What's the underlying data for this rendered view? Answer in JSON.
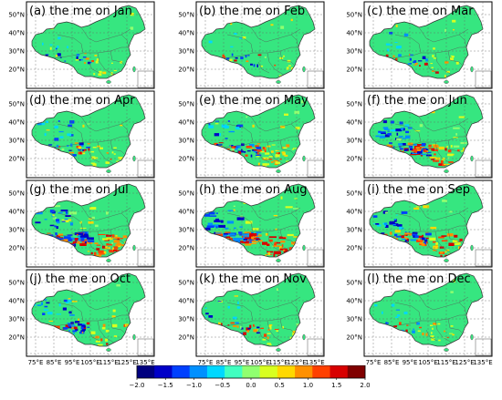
{
  "panels": [
    {
      "title": "(a) the me on Jan",
      "intensity": 0.15,
      "hot": 0.25
    },
    {
      "title": "(b) the me on Feb",
      "intensity": 0.15,
      "hot": 0.25
    },
    {
      "title": "(c) the me on Mar",
      "intensity": 0.2,
      "hot": 0.35
    },
    {
      "title": "(d) the me on Apr",
      "intensity": 0.35,
      "hot": 0.45
    },
    {
      "title": "(e) the me on May",
      "intensity": 0.6,
      "hot": 0.65
    },
    {
      "title": "(f) the me on Jun",
      "intensity": 0.8,
      "hot": 0.8
    },
    {
      "title": "(g) the me on Jul",
      "intensity": 1.0,
      "hot": 1.0
    },
    {
      "title": "(h) the me on Aug",
      "intensity": 1.0,
      "hot": 0.95
    },
    {
      "title": "(i) the me on Sep",
      "intensity": 0.7,
      "hot": 0.8
    },
    {
      "title": "(j) the me on Oct",
      "intensity": 0.45,
      "hot": 0.5
    },
    {
      "title": "(k) the me on Nov",
      "intensity": 0.25,
      "hot": 0.3
    },
    {
      "title": "(l) the me on Dec",
      "intensity": 0.15,
      "hot": 0.25
    }
  ],
  "lat_ticks": [
    "50°N",
    "40°N",
    "30°N",
    "20°N"
  ],
  "lon_ticks": [
    "75°E",
    "85°E",
    "95°E",
    "105°E",
    "115°E",
    "125°E",
    "135°E"
  ],
  "colorbar": {
    "ticks": [
      "−2.0",
      "−1.5",
      "−1.0",
      "−0.5",
      "0.0",
      "0.5",
      "1.0",
      "1.5",
      "2.0"
    ],
    "colors": [
      "#00007f",
      "#0000c8",
      "#0040ff",
      "#0090ff",
      "#00d8ff",
      "#40ffc0",
      "#90ff70",
      "#d8ff20",
      "#ffd800",
      "#ff9000",
      "#ff4000",
      "#d80000",
      "#800000"
    ]
  }
}
